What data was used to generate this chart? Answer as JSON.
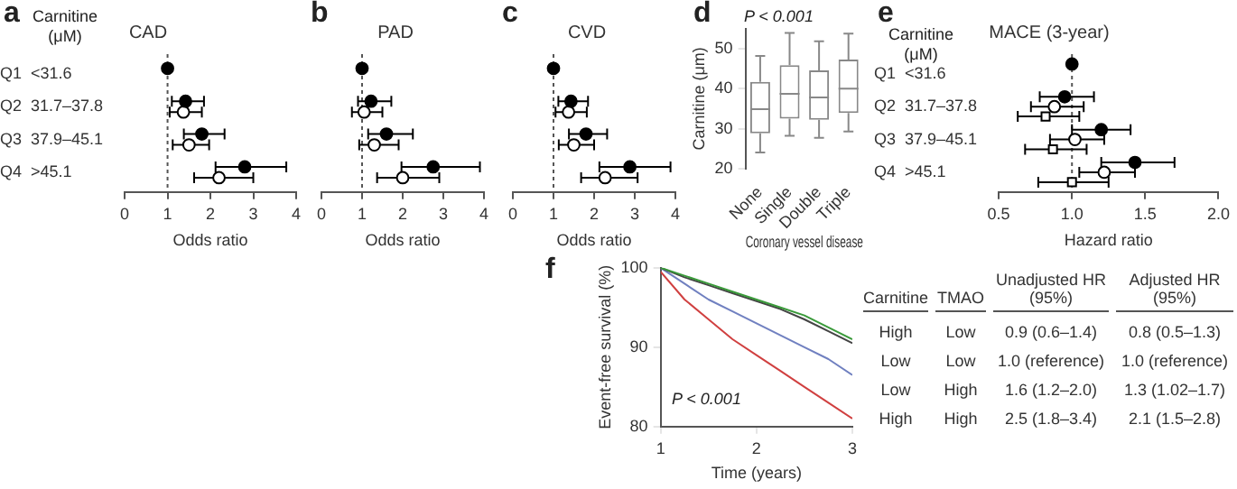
{
  "chart_data": [
    {
      "type": "scatter",
      "orientation": "horizontal",
      "title": "CAD",
      "xlabel": "Odds ratio",
      "categories": [
        "Q1  <31.6",
        "Q2  31.7–37.8",
        "Q3  37.9–45.1",
        "Q4  >45.1"
      ],
      "xlim": [
        0,
        4
      ],
      "xticks": [
        0,
        1,
        2,
        3,
        4
      ],
      "marker": "circle",
      "ref_lines": [
        {
          "axis": "x",
          "value": 1,
          "line_style": "dotted"
        }
      ],
      "annotations": [
        "a",
        "Carnitine (μM)"
      ],
      "series": [
        {
          "color": "#000000",
          "values": [
            1,
            1.42,
            1.8,
            2.8
          ],
          "errors": [
            null,
            [
              1.1,
              1.85
            ],
            [
              1.38,
              2.33
            ],
            [
              2.12,
              3.77
            ]
          ]
        },
        {
          "color": "#000000",
          "values": [
            null,
            1.37,
            1.5,
            2.2
          ],
          "errors": [
            null,
            [
              1.05,
              1.8
            ],
            [
              1.12,
              1.97
            ],
            [
              1.62,
              3.0
            ]
          ]
        }
      ]
    },
    {
      "type": "scatter",
      "orientation": "horizontal",
      "title": "PAD",
      "xlabel": "Odds ratio",
      "categories": [
        null,
        null,
        null,
        null
      ],
      "xlim": [
        0,
        4
      ],
      "xticks": [
        0,
        1,
        2,
        3,
        4
      ],
      "marker": "circle",
      "ref_lines": [
        {
          "axis": "x",
          "value": 1,
          "line_style": "dotted"
        }
      ],
      "annotations": [
        "b"
      ],
      "series": [
        {
          "color": "#000000",
          "values": [
            1,
            1.22,
            1.6,
            2.75
          ],
          "errors": [
            null,
            [
              0.9,
              1.72
            ],
            [
              1.15,
              2.25
            ],
            [
              1.97,
              3.9
            ]
          ]
        },
        {
          "color": "#000000",
          "values": [
            null,
            1.05,
            1.3,
            2.0
          ],
          "errors": [
            null,
            [
              0.75,
              1.5
            ],
            [
              0.93,
              1.9
            ],
            [
              1.37,
              2.9
            ]
          ]
        }
      ]
    },
    {
      "type": "scatter",
      "orientation": "horizontal",
      "title": "CVD",
      "xlabel": "Odds ratio",
      "categories": [
        null,
        null,
        null,
        null
      ],
      "xlim": [
        0,
        4
      ],
      "xticks": [
        0,
        1,
        2,
        3,
        4
      ],
      "marker": "circle",
      "ref_lines": [
        {
          "axis": "x",
          "value": 1,
          "line_style": "dotted"
        }
      ],
      "annotations": [
        "c"
      ],
      "series": [
        {
          "color": "#000000",
          "values": [
            1,
            1.43,
            1.8,
            2.88
          ],
          "errors": [
            null,
            [
              1.12,
              1.85
            ],
            [
              1.38,
              2.32
            ],
            [
              2.13,
              3.88
            ]
          ]
        },
        {
          "color": "#000000",
          "values": [
            null,
            1.37,
            1.5,
            2.27
          ],
          "errors": [
            null,
            [
              1.05,
              1.82
            ],
            [
              1.13,
              2.0
            ],
            [
              1.68,
              3.07
            ]
          ]
        }
      ]
    },
    {
      "type": "box",
      "categories": [
        "None",
        "Single",
        "Double",
        "Triple"
      ],
      "xlabel": "Coronary vessel disease",
      "ylabel": "Carnitine (μm)",
      "ylim": [
        20,
        55
      ],
      "yticks": [
        20,
        30,
        40,
        50
      ],
      "color": "#888888",
      "annotations": [
        "d",
        "P < 0.001"
      ],
      "boxes": [
        {
          "low": 24.0,
          "q1": 28.8,
          "median": 34.9,
          "q3": 41.7,
          "high": 48.2
        },
        {
          "low": 28.2,
          "q1": 32.5,
          "median": 38.7,
          "q3": 45.9,
          "high": 54.0
        },
        {
          "low": 27.7,
          "q1": 32.2,
          "median": 37.8,
          "q3": 44.6,
          "high": 51.9
        },
        {
          "low": 29.3,
          "q1": 33.9,
          "median": 40.0,
          "q3": 47.3,
          "high": 53.8
        }
      ]
    },
    {
      "type": "scatter",
      "orientation": "horizontal",
      "title": "MACE (3-year)",
      "xlabel": "Hazard ratio",
      "categories": [
        "Q1  <31.6",
        "Q2  31.7–37.8",
        "Q3  37.9–45.1",
        "Q4  >45.1"
      ],
      "xlim": [
        0.5,
        2.0
      ],
      "xticks": [
        0.5,
        {
          "value": 1,
          "label": "1.0"
        },
        1.5,
        {
          "value": 2,
          "label": "2.0"
        }
      ],
      "marker": "circle",
      "ref_lines": [
        {
          "axis": "x",
          "value": 1,
          "line_style": "dotted"
        }
      ],
      "annotations": [
        "e",
        "Carnitine (μM)"
      ],
      "series": [
        {
          "color": "#000000",
          "values": [
            1,
            0.95,
            1.2,
            1.43
          ],
          "errors": [
            null,
            [
              0.78,
              1.15
            ],
            [
              1.0,
              1.4
            ],
            [
              1.2,
              1.7
            ]
          ]
        },
        {
          "color": "#000000",
          "values": [
            null,
            0.88,
            1.02,
            1.22
          ],
          "errors": [
            null,
            [
              0.72,
              1.08
            ],
            [
              0.85,
              1.22
            ],
            [
              1.05,
              1.43
            ]
          ]
        },
        {
          "color": "#000000",
          "marker": "square",
          "values": [
            null,
            0.82,
            0.87,
            1.0
          ],
          "errors": [
            null,
            [
              0.63,
              1.05
            ],
            [
              0.68,
              1.1
            ],
            [
              0.77,
              1.25
            ]
          ]
        }
      ]
    },
    {
      "type": "line",
      "xlabel": "Time (years)",
      "ylabel": "Event-free survival (%)",
      "x": [
        1,
        1.25,
        1.5,
        1.75,
        2,
        2.25,
        2.5,
        2.75,
        3
      ],
      "xlim": [
        1,
        3
      ],
      "xticks": [
        1,
        2,
        3
      ],
      "ylim": [
        80,
        100
      ],
      "yticks": [
        80,
        90,
        100
      ],
      "marker": "none",
      "annotations": [
        "f",
        "P < 0.001"
      ],
      "series": [
        {
          "color": "#3a9a3a",
          "values": [
            100,
            99,
            98,
            97,
            96,
            95,
            94,
            92.5,
            91
          ]
        },
        {
          "color": "#444444",
          "values": [
            100,
            98.8,
            97.8,
            96.8,
            95.8,
            94.8,
            93.5,
            92,
            90.5
          ]
        },
        {
          "color": "#7080c0",
          "values": [
            100,
            98,
            96,
            94.5,
            93,
            91.5,
            90,
            88.5,
            86.5
          ]
        },
        {
          "color": "#d04040",
          "values": [
            99.5,
            96,
            93.5,
            91,
            89,
            87,
            85,
            83,
            81
          ]
        }
      ]
    },
    {
      "type": "other",
      "annotations": [
        "Carnitine",
        "TMAO",
        "Unadjusted HR (95%)",
        "Adjusted HR (95%)",
        "High",
        "Low",
        "0.9 (0.6–1.4)",
        "0.8 (0.5–1.3)",
        "Low",
        "Low",
        "1.0 (reference)",
        "1.0 (reference)",
        "Low",
        "High",
        "1.6 (1.2–2.0)",
        "1.3 (1.02–1.7)",
        "High",
        "High",
        "2.5 (1.8–3.4)",
        "2.1 (1.5–2.8)"
      ]
    }
  ]
}
